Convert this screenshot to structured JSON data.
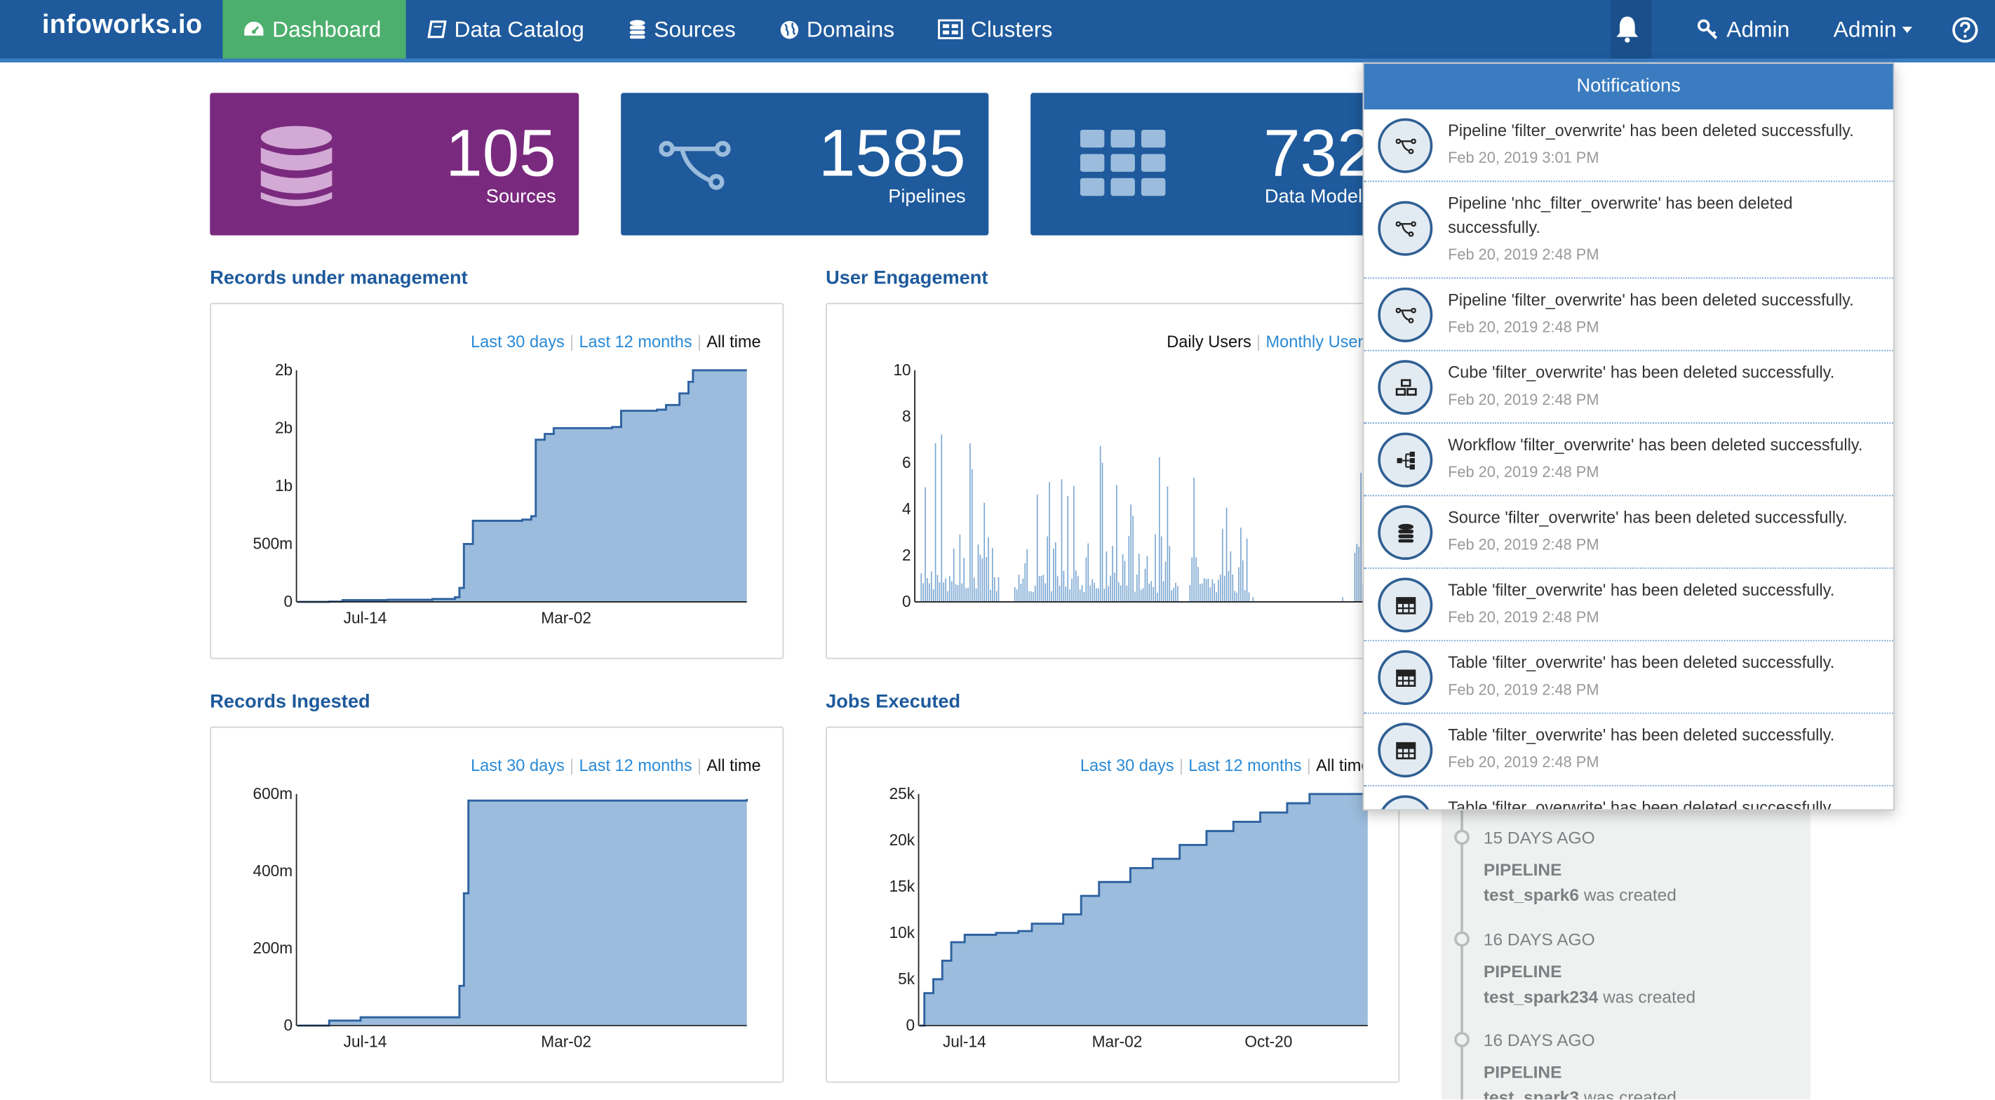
{
  "navbar": {
    "brand": "infoworks.io",
    "items": [
      {
        "label": "Dashboard",
        "icon": "dashboard-icon"
      },
      {
        "label": "Data Catalog",
        "icon": "book-icon"
      },
      {
        "label": "Sources",
        "icon": "database-icon"
      },
      {
        "label": "Domains",
        "icon": "globe-icon"
      },
      {
        "label": "Clusters",
        "icon": "cluster-icon"
      }
    ],
    "bell_icon": "bell-icon",
    "admin_key_label": "Admin",
    "admin_menu_label": "Admin",
    "help_icon": "help-icon",
    "active_color": "#4caf6d",
    "bar_color": "#1e5a9c"
  },
  "stats": {
    "sources": {
      "value": "105",
      "label": "Sources",
      "color": "#7a2a7e",
      "icon": "database-icon"
    },
    "pipelines": {
      "value": "1585",
      "label": "Pipelines",
      "color": "#1e5a9c",
      "icon": "pipeline-icon"
    },
    "models": {
      "value": "732",
      "label": "Data Models",
      "color": "#1e5a9c",
      "icon": "grid-icon"
    }
  },
  "sections": {
    "records_mgmt": "Records under management",
    "user_engagement": "User Engagement",
    "records_ingested": "Records Ingested",
    "jobs_executed": "Jobs Executed"
  },
  "ranges": {
    "last30": "Last 30 days",
    "last12": "Last 12 months",
    "all": "All time",
    "daily": "Daily Users",
    "monthly": "Monthly Users"
  },
  "chart_data": [
    {
      "type": "area",
      "name": "Records under management",
      "x_ticks": [
        "Jul-14",
        "Mar-02"
      ],
      "y_ticks": [
        "0",
        "500m",
        "1b",
        "2b",
        "2b"
      ],
      "ylim": [
        0,
        2000000000
      ],
      "points": [
        [
          0,
          0
        ],
        [
          0.07,
          2000000
        ],
        [
          0.1,
          15000000
        ],
        [
          0.2,
          18000000
        ],
        [
          0.3,
          25000000
        ],
        [
          0.35,
          40000000
        ],
        [
          0.36,
          120000000
        ],
        [
          0.37,
          500000000
        ],
        [
          0.39,
          700000000
        ],
        [
          0.5,
          710000000
        ],
        [
          0.52,
          740000000
        ],
        [
          0.53,
          1400000000
        ],
        [
          0.55,
          1450000000
        ],
        [
          0.57,
          1500000000
        ],
        [
          0.7,
          1510000000
        ],
        [
          0.72,
          1650000000
        ],
        [
          0.8,
          1660000000
        ],
        [
          0.82,
          1700000000
        ],
        [
          0.85,
          1800000000
        ],
        [
          0.87,
          1900000000
        ],
        [
          0.88,
          2000000000
        ],
        [
          1,
          2000000000
        ]
      ],
      "color": "#9bbcdc",
      "line_color": "#2e62a0"
    },
    {
      "type": "bar",
      "name": "User Engagement",
      "y_ticks": [
        "0",
        "2",
        "4",
        "6",
        "8",
        "10"
      ],
      "ylim": [
        0,
        10
      ],
      "seed": 7,
      "color": "#7aa6d2"
    },
    {
      "type": "area",
      "name": "Records Ingested",
      "x_ticks": [
        "Jul-14",
        "Mar-02"
      ],
      "y_ticks": [
        "0",
        "200m",
        "400m",
        "600m"
      ],
      "ylim": [
        0,
        700000000
      ],
      "points": [
        [
          0,
          0
        ],
        [
          0.07,
          15000000
        ],
        [
          0.14,
          25000000
        ],
        [
          0.35,
          25000000
        ],
        [
          0.36,
          120000000
        ],
        [
          0.37,
          400000000
        ],
        [
          0.38,
          680000000
        ],
        [
          1,
          685000000
        ]
      ],
      "color": "#9bbcdc",
      "line_color": "#2e62a0"
    },
    {
      "type": "area",
      "name": "Jobs Executed",
      "x_ticks": [
        "Jul-14",
        "Mar-02",
        "Oct-20"
      ],
      "y_ticks": [
        "0",
        "5k",
        "10k",
        "15k",
        "20k",
        "25k"
      ],
      "ylim": [
        0,
        25000
      ],
      "points": [
        [
          0,
          0
        ],
        [
          0.01,
          3500
        ],
        [
          0.03,
          5000
        ],
        [
          0.05,
          7000
        ],
        [
          0.07,
          9000
        ],
        [
          0.1,
          9800
        ],
        [
          0.17,
          10000
        ],
        [
          0.22,
          10200
        ],
        [
          0.25,
          11000
        ],
        [
          0.32,
          12000
        ],
        [
          0.36,
          14000
        ],
        [
          0.4,
          15500
        ],
        [
          0.47,
          17000
        ],
        [
          0.52,
          18000
        ],
        [
          0.58,
          19500
        ],
        [
          0.64,
          21000
        ],
        [
          0.7,
          22000
        ],
        [
          0.76,
          23000
        ],
        [
          0.82,
          24000
        ],
        [
          0.87,
          25000
        ],
        [
          1,
          25000
        ]
      ],
      "color": "#9bbcdc",
      "line_color": "#2e62a0"
    }
  ],
  "timeline": [
    {
      "when": "15 DAYS AGO",
      "type": "PIPELINE",
      "name": "test_spark6",
      "action": "was created"
    },
    {
      "when": "16 DAYS AGO",
      "type": "PIPELINE",
      "name": "test_spark234",
      "action": "was created"
    },
    {
      "when": "16 DAYS AGO",
      "type": "PIPELINE",
      "name": "test_spark3",
      "action": "was created"
    }
  ],
  "notifications": {
    "title": "Notifications",
    "items": [
      {
        "msg": "Pipeline 'filter_overwrite' has been deleted successfully.",
        "time": "Feb 20, 2019 3:01 PM",
        "icon": "pipeline-icon"
      },
      {
        "msg": "Pipeline 'nhc_filter_overwrite' has been deleted successfully.",
        "time": "Feb 20, 2019 2:48 PM",
        "icon": "pipeline-icon"
      },
      {
        "msg": "Pipeline 'filter_overwrite' has been deleted successfully.",
        "time": "Feb 20, 2019 2:48 PM",
        "icon": "pipeline-icon"
      },
      {
        "msg": "Cube 'filter_overwrite' has been deleted successfully.",
        "time": "Feb 20, 2019 2:48 PM",
        "icon": "cubes-icon"
      },
      {
        "msg": "Workflow 'filter_overwrite' has been deleted successfully.",
        "time": "Feb 20, 2019 2:48 PM",
        "icon": "workflow-icon"
      },
      {
        "msg": "Source 'filter_overwrite' has been deleted successfully.",
        "time": "Feb 20, 2019 2:48 PM",
        "icon": "database-icon"
      },
      {
        "msg": "Table 'filter_overwrite' has been deleted successfully.",
        "time": "Feb 20, 2019 2:48 PM",
        "icon": "table-icon"
      },
      {
        "msg": "Table 'filter_overwrite' has been deleted successfully.",
        "time": "Feb 20, 2019 2:48 PM",
        "icon": "table-icon"
      },
      {
        "msg": "Table 'filter_overwrite' has been deleted successfully.",
        "time": "Feb 20, 2019 2:48 PM",
        "icon": "table-icon"
      },
      {
        "msg": "Table 'filter_overwrite' has been deleted successfully.",
        "time": "",
        "icon": "table-icon"
      }
    ]
  }
}
